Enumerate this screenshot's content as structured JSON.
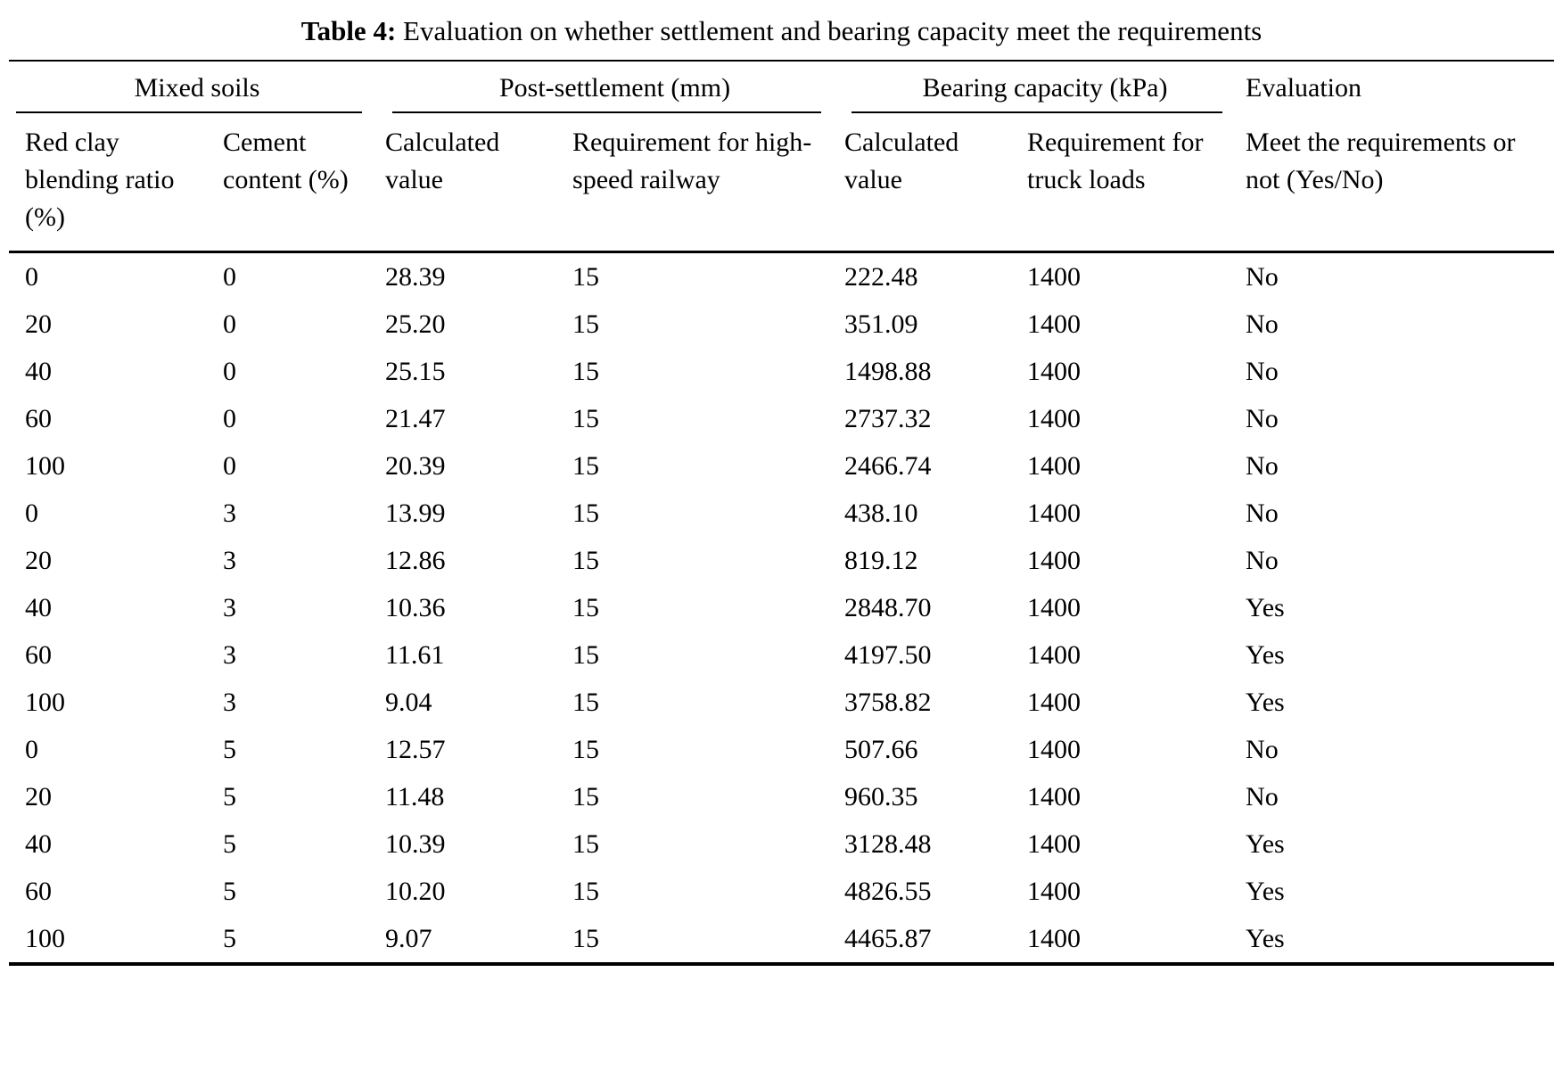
{
  "caption": {
    "label": "Table 4:",
    "text": "Evaluation on whether settlement and bearing capacity meet the requirements"
  },
  "table": {
    "group_headers": [
      {
        "label": "Mixed soils"
      },
      {
        "label": "Post-settlement (mm)"
      },
      {
        "label": "Bearing capacity (kPa)"
      },
      {
        "label": "Evaluation"
      }
    ],
    "column_headers": [
      "Red clay blending ratio (%)",
      "Cement content (%)",
      "Calculated value",
      "Requirement for high-speed railway",
      "Calculated value",
      "Requirement for truck loads",
      "Meet the requirements or not (Yes/No)"
    ],
    "rows": [
      [
        "0",
        "0",
        "28.39",
        "15",
        "222.48",
        "1400",
        "No"
      ],
      [
        "20",
        "0",
        "25.20",
        "15",
        "351.09",
        "1400",
        "No"
      ],
      [
        "40",
        "0",
        "25.15",
        "15",
        "1498.88",
        "1400",
        "No"
      ],
      [
        "60",
        "0",
        "21.47",
        "15",
        "2737.32",
        "1400",
        "No"
      ],
      [
        "100",
        "0",
        "20.39",
        "15",
        "2466.74",
        "1400",
        "No"
      ],
      [
        "0",
        "3",
        "13.99",
        "15",
        "438.10",
        "1400",
        "No"
      ],
      [
        "20",
        "3",
        "12.86",
        "15",
        "819.12",
        "1400",
        "No"
      ],
      [
        "40",
        "3",
        "10.36",
        "15",
        "2848.70",
        "1400",
        "Yes"
      ],
      [
        "60",
        "3",
        "11.61",
        "15",
        "4197.50",
        "1400",
        "Yes"
      ],
      [
        "100",
        "3",
        "9.04",
        "15",
        "3758.82",
        "1400",
        "Yes"
      ],
      [
        "0",
        "5",
        "12.57",
        "15",
        "507.66",
        "1400",
        "No"
      ],
      [
        "20",
        "5",
        "11.48",
        "15",
        "960.35",
        "1400",
        "No"
      ],
      [
        "40",
        "5",
        "10.39",
        "15",
        "3128.48",
        "1400",
        "Yes"
      ],
      [
        "60",
        "5",
        "10.20",
        "15",
        "4826.55",
        "1400",
        "Yes"
      ],
      [
        "100",
        "5",
        "9.07",
        "15",
        "4465.87",
        "1400",
        "Yes"
      ]
    ]
  }
}
